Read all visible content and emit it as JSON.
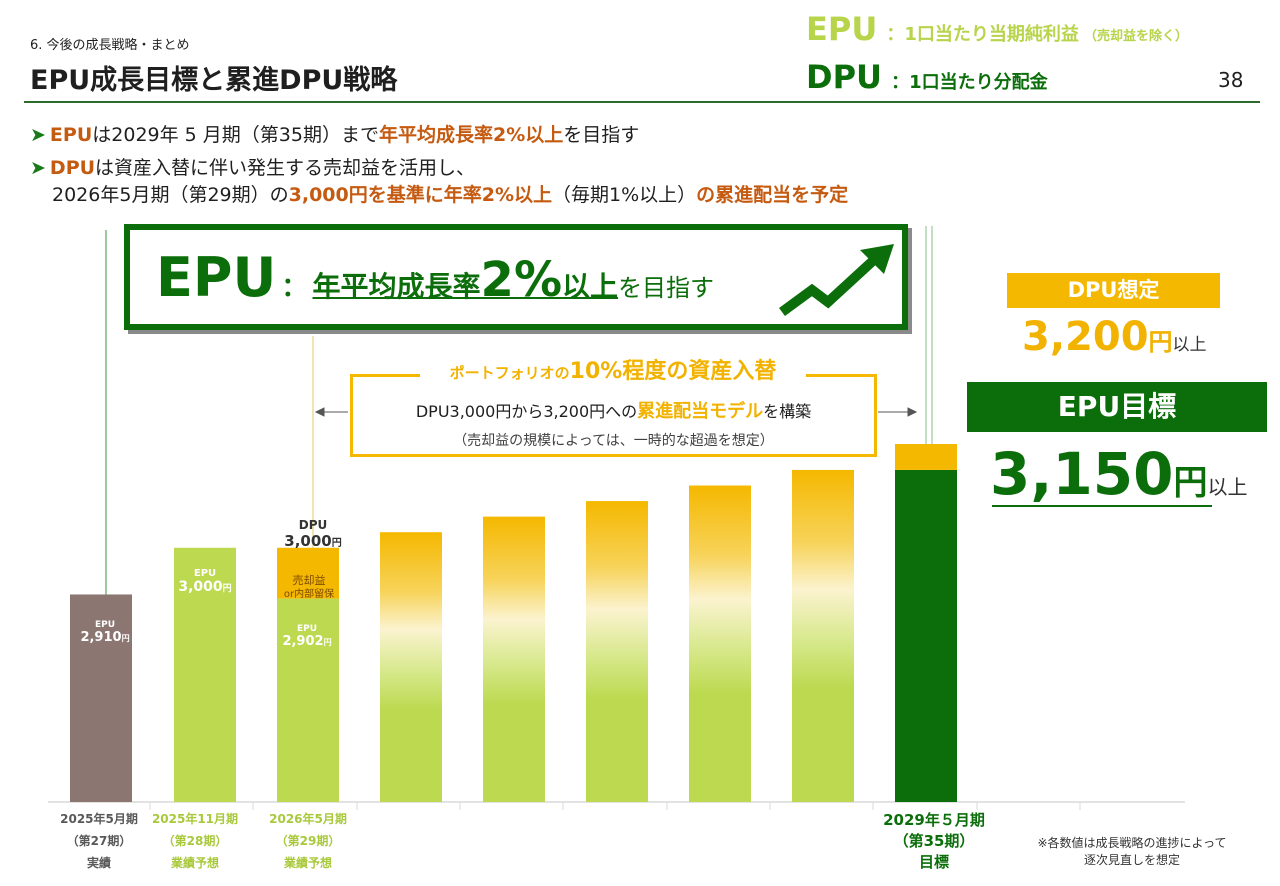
{
  "header": {
    "section": "6. 今後の成長戦略・まとめ",
    "title": "EPU成長目標と累進DPU戦略",
    "page_number": "38"
  },
  "legend": {
    "epu_key": "EPU",
    "epu_desc": "：1口当たり当期純利益",
    "epu_note": "（売却益を除く）",
    "dpu_key": "DPU",
    "dpu_desc": "：1口当たり分配金"
  },
  "bullets": {
    "b1_part1": "EPU",
    "b1_part2": "は2029年 5 月期（第35期）まで",
    "b1_part3": "年平均成長率2%以上",
    "b1_part4": "を目指す",
    "b2_part1": "DPU",
    "b2_part2": "は資産入替に伴い発生する売却益を活用し、",
    "b2_line2_part1": "2026年5月期（第29期）の",
    "b2_line2_part2": "3,000円を基準に年率2%以上",
    "b2_line2_part3": "（毎期1%以上）",
    "b2_line2_part4": "の累進配当を予定"
  },
  "hero": {
    "epu": "EPU",
    "colon": "：",
    "text1": "年平均成長率",
    "text2": "2%",
    "text3": "以上",
    "text4": "を目指す"
  },
  "swap_box": {
    "title_small": "ポートフォリオの",
    "title_big": "10%程度の資産入替",
    "line1_part1": "DPU3,000円から3,200円への",
    "line1_part2": "累進配当モデル",
    "line1_part3": "を構築",
    "line2": "（売却益の規模によっては、一時的な超過を想定）"
  },
  "right_panel": {
    "dpu_badge": "DPU想定",
    "dpu_value": "3,200",
    "dpu_unit": "円",
    "dpu_suffix": "以上",
    "epu_badge": "EPU目標",
    "epu_value": "3,150",
    "epu_unit": "円",
    "epu_suffix": "以上"
  },
  "bar_labels": {
    "b1_key": "EPU",
    "b1_val": "2,910",
    "b1_unit": "円",
    "b2_key": "EPU",
    "b2_val": "3,000",
    "b2_unit": "円",
    "b3_dpu_key": "DPU",
    "b3_dpu_val": "3,000",
    "b3_dpu_unit": "円",
    "b3_sale1": "売却益",
    "b3_sale2": "or内部留保",
    "b3_key": "EPU",
    "b3_val": "2,902",
    "b3_unit": "円"
  },
  "footnote": {
    "line1": "※各数値は成長戦略の進捗によって",
    "line2": "逐次見直しを想定"
  },
  "colors": {
    "dark_green": "#0b6e0b",
    "lime": "#bcd94f",
    "gold": "#f5b800",
    "taupe": "#8b7672",
    "orange_text": "#c55a11"
  },
  "chart_data": {
    "type": "bar",
    "categories": [
      "2025年5月期（第27期）実績",
      "2025年11月期（第28期）業績予想",
      "2026年5月期（第29期）業績予想",
      "",
      "",
      "",
      "",
      "2029年５月期（第35期）目標"
    ],
    "category_lines": [
      [
        "2025年5月期",
        "（第27期）",
        "実績"
      ],
      [
        "2025年11月期",
        "（第28期）",
        "業績予想"
      ],
      [
        "2026年5月期",
        "（第29期）",
        "業績予想"
      ],
      [
        "",
        "",
        ""
      ],
      [
        "",
        "",
        ""
      ],
      [
        "",
        "",
        ""
      ],
      [
        "",
        "",
        ""
      ],
      [
        "2029年５月期",
        "（第35期）",
        "目標"
      ]
    ],
    "series": [
      {
        "name": "EPU",
        "values": [
          2910,
          3000,
          2902,
          null,
          null,
          null,
          null,
          3150
        ]
      },
      {
        "name": "DPU",
        "values": [
          null,
          null,
          3000,
          null,
          null,
          null,
          null,
          3200
        ]
      }
    ],
    "illustrative_bar_tops": [
      2910,
      3000,
      3000,
      3030,
      3060,
      3090,
      3120,
      3150,
      3200
    ],
    "ylim": [
      2510,
      3200
    ],
    "grid": false,
    "legend_position": "top-right"
  }
}
